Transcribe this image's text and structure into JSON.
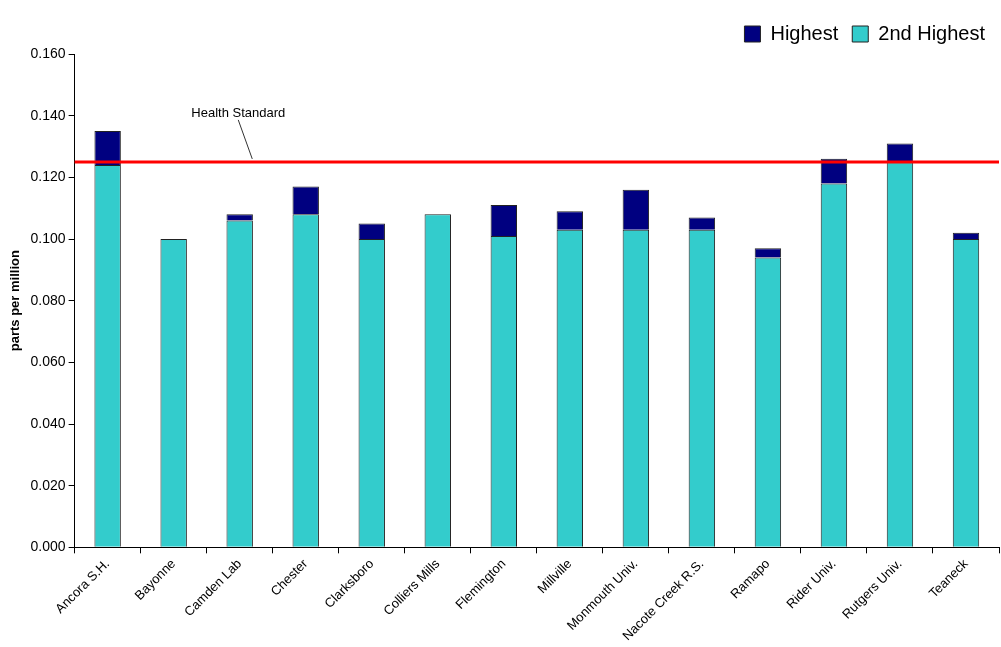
{
  "chart_data": {
    "type": "bar",
    "stacked": true,
    "ylabel": "parts per million",
    "categories": [
      "Ancora S.H.",
      "Bayonne",
      "Camden Lab",
      "Chester",
      "Clarksboro",
      "Colliers Mills",
      "Flemington",
      "Millville",
      "Monmouth Univ.",
      "Nacote Creek R.S.",
      "Ramapo",
      "Rider Univ.",
      "Rutgers Univ.",
      "Teaneck"
    ],
    "series": [
      {
        "name": "2nd Highest",
        "color": "#33cccc",
        "values": [
          0.124,
          0.1,
          0.106,
          0.108,
          0.1,
          0.108,
          0.101,
          0.103,
          0.103,
          0.103,
          0.094,
          0.118,
          0.125,
          0.1
        ]
      },
      {
        "name": "Highest",
        "color": "#000080",
        "values": [
          0.011,
          0,
          0.002,
          0.009,
          0.005,
          0,
          0.01,
          0.006,
          0.013,
          0.004,
          0.003,
          0.008,
          0.006,
          0.002
        ]
      }
    ],
    "ylim": [
      0,
      0.16
    ],
    "yticks": [
      {
        "value": 0,
        "label": "0.000"
      },
      {
        "value": 0.02,
        "label": "0.020"
      },
      {
        "value": 0.04,
        "label": "0.040"
      },
      {
        "value": 0.06,
        "label": "0.060"
      },
      {
        "value": 0.08,
        "label": "0.080"
      },
      {
        "value": 0.1,
        "label": "0.100"
      },
      {
        "value": 0.12,
        "label": "0.120"
      },
      {
        "value": 0.14,
        "label": "0.140"
      },
      {
        "value": 0.16,
        "label": "0.160"
      }
    ],
    "ref_lines": [
      {
        "axis": "y",
        "value": 0.125,
        "label": "Health Standard",
        "color": "#ff0000"
      }
    ],
    "grid": false,
    "legend": "top right"
  }
}
